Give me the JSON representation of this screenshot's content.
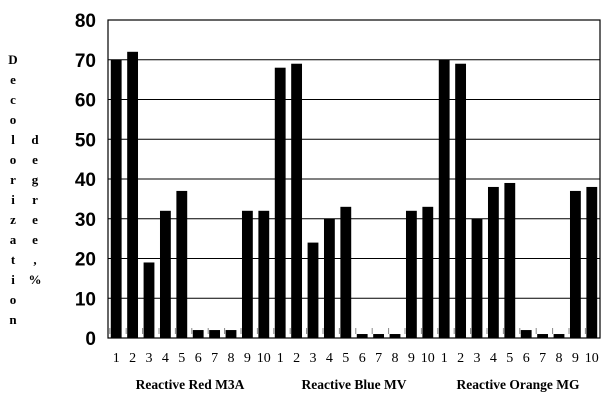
{
  "chart_data": {
    "type": "bar",
    "ylabel": [
      "Decolorization",
      "degree,%"
    ],
    "ylim": [
      0,
      80
    ],
    "yticks": [
      0,
      10,
      20,
      30,
      40,
      50,
      60,
      70,
      80
    ],
    "grid": "horizontal",
    "legend": "none",
    "bar_color": "#000000",
    "groups": [
      {
        "name": "Reactive Red M3A",
        "categories": [
          "1",
          "2",
          "3",
          "4",
          "5",
          "6",
          "7",
          "8",
          "9",
          "10"
        ],
        "values": [
          70,
          72,
          19,
          32,
          37,
          2,
          2,
          2,
          32,
          32
        ]
      },
      {
        "name": "Reactive Blue MV",
        "categories": [
          "1",
          "2",
          "3",
          "4",
          "5",
          "6",
          "7",
          "8",
          "9",
          "10"
        ],
        "values": [
          68,
          69,
          24,
          30,
          33,
          1,
          1,
          1,
          32,
          33
        ]
      },
      {
        "name": "Reactive Orange MG",
        "categories": [
          "1",
          "2",
          "3",
          "4",
          "5",
          "6",
          "7",
          "8",
          "9",
          "10"
        ],
        "values": [
          70,
          69,
          30,
          38,
          39,
          2,
          1,
          1,
          37,
          38
        ]
      }
    ]
  }
}
